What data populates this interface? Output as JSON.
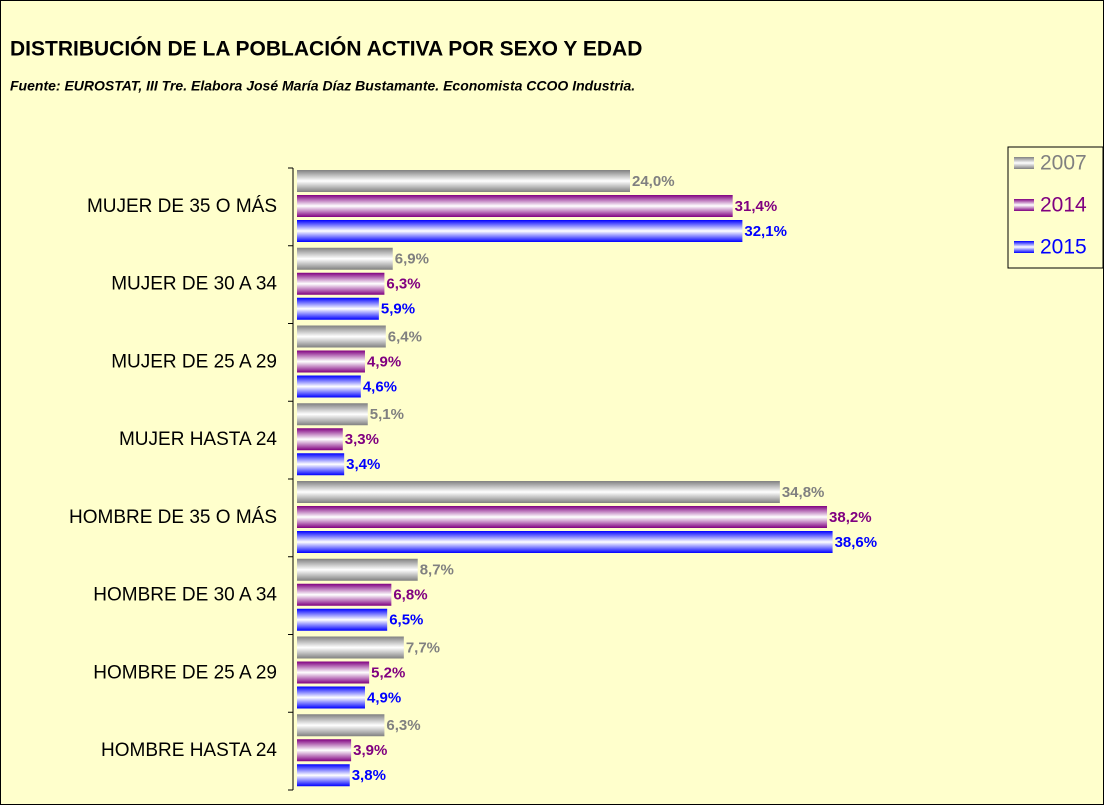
{
  "chart_data": {
    "type": "bar",
    "orientation": "horizontal",
    "title": "DISTRIBUCIÓN DE LA POBLACIÓN ACTIVA POR SEXO Y EDAD",
    "subtitle": "Fuente: EUROSTAT, III Tre. Elabora José María Díaz Bustamante. Economista CCOO Industria.",
    "categories": [
      "MUJER DE 35 O MÁS",
      "MUJER DE 30 A 34",
      "MUJER DE 25 A 29",
      "MUJER HASTA 24",
      "HOMBRE DE 35 O MÁS",
      "HOMBRE DE 30 A 34",
      "HOMBRE DE 25 A 29",
      "HOMBRE HASTA 24"
    ],
    "series": [
      {
        "name": "2007",
        "color": "#808080",
        "values": [
          24.0,
          6.9,
          6.4,
          5.1,
          34.8,
          8.7,
          7.7,
          6.3
        ],
        "value_labels": [
          "24,0%",
          "6,9%",
          "6,4%",
          "5,1%",
          "34,8%",
          "8,7%",
          "7,7%",
          "6,3%"
        ]
      },
      {
        "name": "2014",
        "color": "#800080",
        "values": [
          31.4,
          6.3,
          4.9,
          3.3,
          38.2,
          6.8,
          5.2,
          3.9
        ],
        "value_labels": [
          "31,4%",
          "6,3%",
          "4,9%",
          "3,3%",
          "38,2%",
          "6,8%",
          "5,2%",
          "3,9%"
        ]
      },
      {
        "name": "2015",
        "color": "#0000ff",
        "values": [
          32.1,
          5.9,
          4.6,
          3.4,
          38.6,
          6.5,
          4.9,
          3.8
        ],
        "value_labels": [
          "32,1%",
          "5,9%",
          "4,6%",
          "3,4%",
          "38,6%",
          "6,5%",
          "4,9%",
          "3,8%"
        ]
      }
    ],
    "legend": "right"
  }
}
